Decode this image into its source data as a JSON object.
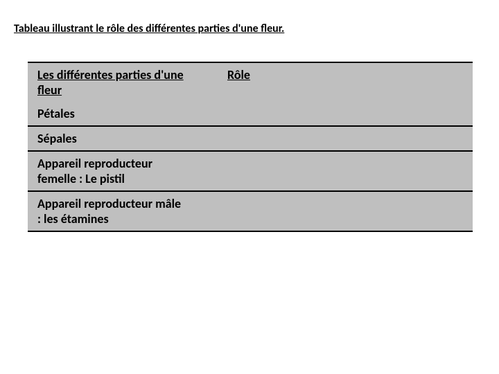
{
  "title": "Tableau illustrant le rôle des différentes parties d'une fleur.",
  "table": {
    "background_color": "#bfbfbf",
    "border_color": "#000000",
    "col_left_width": 240,
    "col_right_width": 402,
    "font_size": 18,
    "header": {
      "left": "Les différentes parties d'une fleur",
      "right": "Rôle"
    },
    "rows": [
      {
        "left": "Pétales",
        "right": ""
      },
      {
        "left": "Sépales",
        "right": ""
      },
      {
        "left": "Appareil reproducteur femelle :  Le pistil",
        "right": ""
      },
      {
        "left": "Appareil reproducteur mâle : les étamines",
        "right": ""
      }
    ]
  }
}
